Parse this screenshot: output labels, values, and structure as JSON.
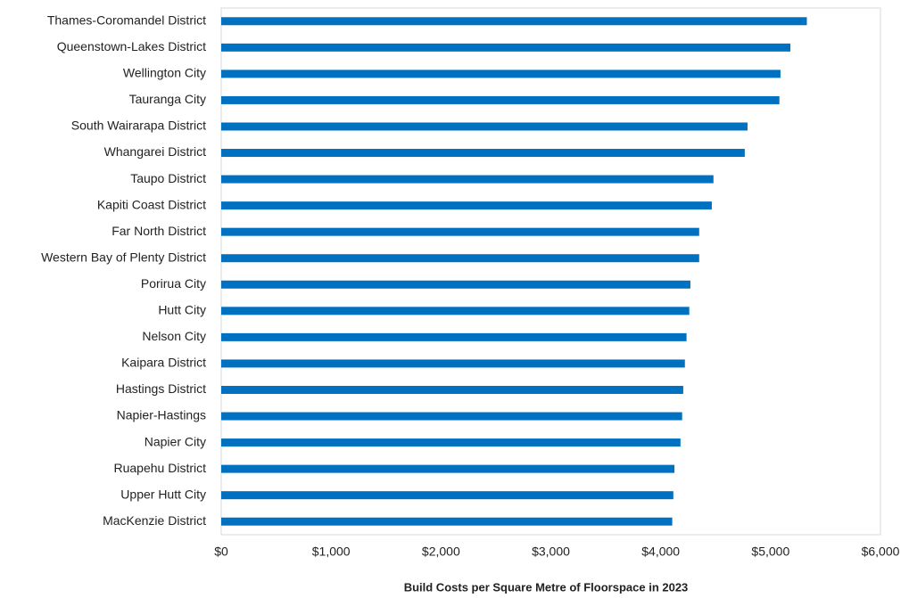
{
  "chart_data": {
    "type": "bar",
    "orientation": "horizontal",
    "x_label": "Build Costs per Square Metre of Floorspace in 2023",
    "categories": [
      "Thames-Coromandel District",
      "Queenstown-Lakes District",
      "Wellington City",
      "Tauranga City",
      "South Wairarapa District",
      "Whangarei District",
      "Taupo District",
      "Kapiti Coast District",
      "Far North District",
      "Western Bay of Plenty District",
      "Porirua City",
      "Hutt City",
      "Nelson City",
      "Kaipara District",
      "Hastings District",
      "Napier-Hastings",
      "Napier City",
      "Ruapehu District",
      "Upper Hutt City",
      "MacKenzie District"
    ],
    "values": [
      5330,
      5180,
      5090,
      5080,
      4790,
      4765,
      4480,
      4465,
      4350,
      4350,
      4270,
      4260,
      4235,
      4220,
      4205,
      4195,
      4180,
      4125,
      4115,
      4105
    ],
    "color": "#0070c0",
    "xlim": [
      0,
      6000
    ],
    "xticks": [
      {
        "value": 0,
        "label": "$0"
      },
      {
        "value": 1000,
        "label": "$1,000"
      },
      {
        "value": 2000,
        "label": "$2,000"
      },
      {
        "value": 3000,
        "label": "$3,000"
      },
      {
        "value": 4000,
        "label": "$4,000"
      },
      {
        "value": 5000,
        "label": "$5,000"
      },
      {
        "value": 6000,
        "label": "$6,000"
      }
    ],
    "grid": false
  }
}
